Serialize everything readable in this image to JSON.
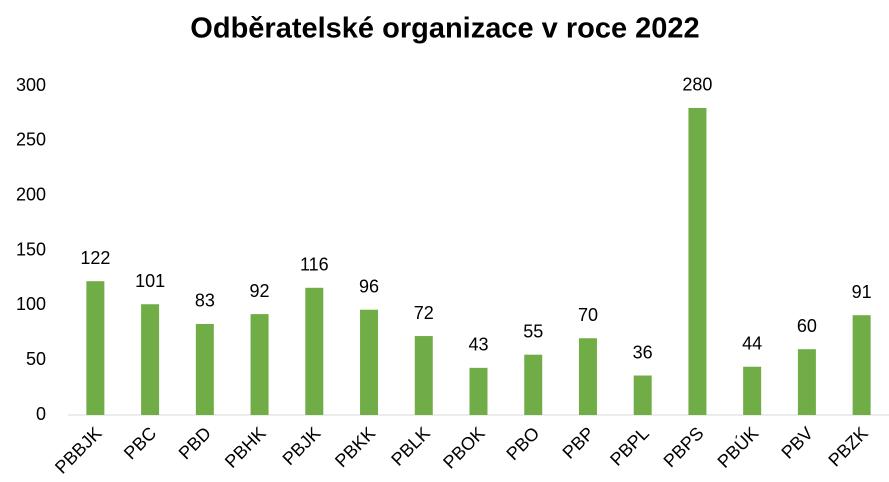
{
  "chart_data": {
    "type": "bar",
    "title": "Odběratelské organizace v roce 2022",
    "categories": [
      "PBBJK",
      "PBC",
      "PBD",
      "PBHK",
      "PBJK",
      "PBKK",
      "PBLK",
      "PBOK",
      "PBO",
      "PBP",
      "PBPL",
      "PBPS",
      "PBÚK",
      "PBV",
      "PBZK"
    ],
    "values": [
      122,
      101,
      83,
      92,
      116,
      96,
      72,
      43,
      55,
      70,
      36,
      280,
      44,
      60,
      91
    ],
    "color": "#70ad47",
    "ylim": [
      0,
      300
    ],
    "yticks": [
      0,
      50,
      100,
      150,
      200,
      250,
      300
    ],
    "grid": false
  }
}
